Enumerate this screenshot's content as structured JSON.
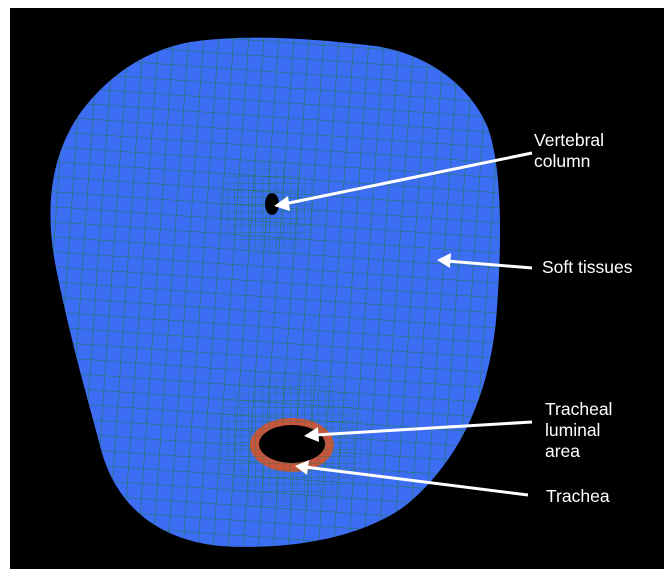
{
  "labels": {
    "vertebral_column": "Vertebral\ncolumn",
    "soft_tissues": "Soft tissues",
    "tracheal_luminal_area": "Tracheal\nluminal\narea",
    "trachea": "Trachea"
  },
  "colors": {
    "background": "#000000",
    "soft_tissue_fill": "#3d6df2",
    "mesh_lines": "#1f7a52",
    "trachea_ring": "#c8553d",
    "cavity": "#000000",
    "arrows": "#ffffff",
    "text": "#ffffff"
  }
}
